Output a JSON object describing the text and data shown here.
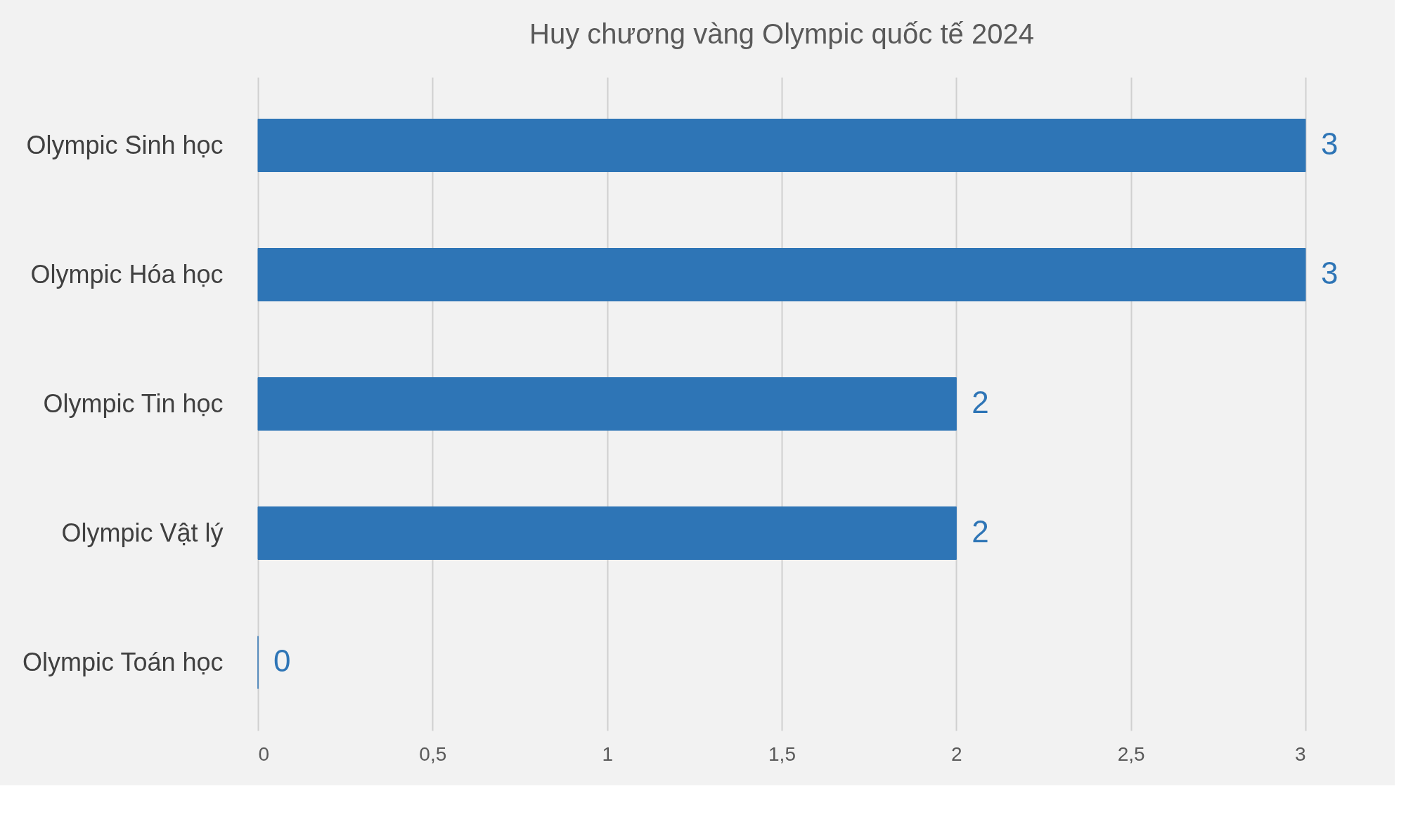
{
  "chart_data": {
    "type": "bar",
    "orientation": "horizontal",
    "title": "Huy chương vàng Olympic quốc tế 2024",
    "categories": [
      "Olympic Sinh học",
      "Olympic Hóa học",
      "Olympic Tin học",
      "Olympic Vật lý",
      "Olympic Toán học"
    ],
    "values": [
      3,
      3,
      2,
      2,
      0
    ],
    "color": "#2e75b6",
    "xlim": [
      0,
      3
    ],
    "xticks": [
      0,
      {
        "value": 0.5,
        "label": "0,5"
      },
      1,
      {
        "value": 1.5,
        "label": "1,5"
      },
      2,
      {
        "value": 2.5,
        "label": "2,5"
      },
      3
    ],
    "grid": "x",
    "data_labels": true
  }
}
